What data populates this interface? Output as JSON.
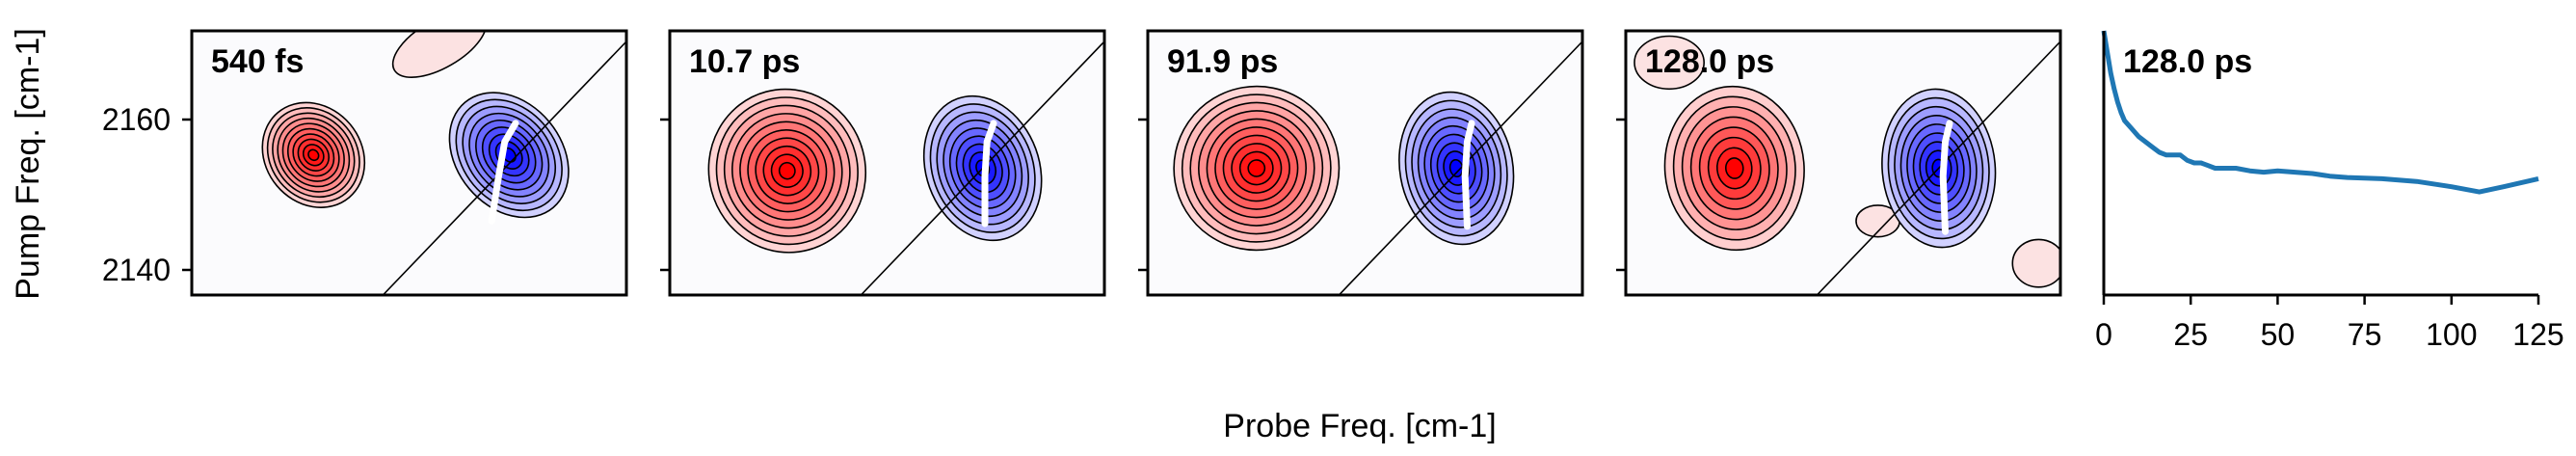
{
  "figure": {
    "xlabel": "Probe Freq. [cm-1]",
    "ylabel": "Pump Freq. [cm-1]"
  },
  "chart_data": [
    {
      "type": "heatmap",
      "title": "540 fs",
      "ylim": [
        2136,
        2171
      ],
      "yticks": [
        2140,
        2160
      ],
      "yticklabels": [
        "2140",
        "2160"
      ],
      "colormap": "bwr",
      "diagonal_line": true,
      "contours": {
        "negative": {
          "cx": 0.28,
          "cy": 0.47,
          "sx": 0.11,
          "sy": 0.21,
          "angle": -40,
          "levels": 10
        },
        "positive": {
          "cx": 0.73,
          "cy": 0.47,
          "sx": 0.12,
          "sy": 0.26,
          "angle": -40,
          "levels": 9
        },
        "extra": [
          {
            "cx": 0.57,
            "cy": 0.05,
            "sx": 0.12,
            "sy": 0.09,
            "angle": -30,
            "levels": 1,
            "sign": -1
          }
        ]
      },
      "center_line": [
        [
          0.69,
          0.72
        ],
        [
          0.705,
          0.56
        ],
        [
          0.72,
          0.42
        ],
        [
          0.745,
          0.35
        ]
      ]
    },
    {
      "type": "heatmap",
      "title": "10.7 ps",
      "ylim": [
        2136,
        2171
      ],
      "colormap": "bwr",
      "diagonal_line": true,
      "contours": {
        "negative": {
          "cx": 0.27,
          "cy": 0.53,
          "sx": 0.18,
          "sy": 0.31,
          "angle": -15,
          "levels": 10
        },
        "positive": {
          "cx": 0.72,
          "cy": 0.52,
          "sx": 0.13,
          "sy": 0.28,
          "angle": -20,
          "levels": 9
        },
        "extra": []
      },
      "center_line": [
        [
          0.725,
          0.73
        ],
        [
          0.725,
          0.55
        ],
        [
          0.73,
          0.42
        ],
        [
          0.745,
          0.35
        ]
      ]
    },
    {
      "type": "heatmap",
      "title": "91.9 ps",
      "ylim": [
        2136,
        2171
      ],
      "colormap": "bwr",
      "diagonal_line": true,
      "contours": {
        "negative": {
          "cx": 0.25,
          "cy": 0.52,
          "sx": 0.19,
          "sy": 0.31,
          "angle": -10,
          "levels": 10
        },
        "positive": {
          "cx": 0.71,
          "cy": 0.52,
          "sx": 0.13,
          "sy": 0.29,
          "angle": -10,
          "levels": 9
        },
        "extra": []
      },
      "center_line": [
        [
          0.735,
          0.74
        ],
        [
          0.73,
          0.55
        ],
        [
          0.735,
          0.42
        ],
        [
          0.745,
          0.35
        ]
      ]
    },
    {
      "type": "heatmap",
      "title": "128.0 ps",
      "ylim": [
        2136,
        2171
      ],
      "colormap": "bwr",
      "diagonal_line": true,
      "contours": {
        "negative": {
          "cx": 0.25,
          "cy": 0.52,
          "sx": 0.16,
          "sy": 0.31,
          "angle": -5,
          "levels": 8
        },
        "positive": {
          "cx": 0.72,
          "cy": 0.52,
          "sx": 0.13,
          "sy": 0.3,
          "angle": -5,
          "levels": 9
        },
        "extra": [
          {
            "cx": 0.58,
            "cy": 0.72,
            "sx": 0.05,
            "sy": 0.06,
            "angle": 0,
            "levels": 1,
            "sign": -1
          },
          {
            "cx": 0.95,
            "cy": 0.88,
            "sx": 0.06,
            "sy": 0.09,
            "angle": 0,
            "levels": 1,
            "sign": -1
          },
          {
            "cx": 0.1,
            "cy": 0.12,
            "sx": 0.08,
            "sy": 0.1,
            "angle": 0,
            "levels": 1,
            "sign": -1
          }
        ]
      },
      "center_line": [
        [
          0.735,
          0.76
        ],
        [
          0.73,
          0.55
        ],
        [
          0.735,
          0.42
        ],
        [
          0.745,
          0.35
        ]
      ]
    },
    {
      "type": "line",
      "title": "128.0 ps",
      "xlim": [
        0,
        125
      ],
      "xticks": [
        0,
        25,
        50,
        75,
        100,
        125
      ],
      "xticklabels": [
        "0",
        "25",
        "50",
        "75",
        "100",
        "125"
      ],
      "series": [
        {
          "color": "#1f77b4",
          "x": [
            0,
            1,
            2,
            3,
            4,
            5,
            6,
            8,
            10,
            12,
            14,
            16,
            18,
            20,
            22,
            24,
            26,
            28,
            30,
            32,
            35,
            38,
            42,
            46,
            50,
            55,
            60,
            65,
            70,
            80,
            90,
            100,
            108,
            115,
            125
          ],
          "y": [
            1.0,
            0.92,
            0.84,
            0.78,
            0.73,
            0.69,
            0.66,
            0.63,
            0.6,
            0.58,
            0.56,
            0.54,
            0.53,
            0.53,
            0.53,
            0.51,
            0.5,
            0.5,
            0.49,
            0.48,
            0.48,
            0.48,
            0.47,
            0.465,
            0.47,
            0.465,
            0.46,
            0.45,
            0.445,
            0.44,
            0.43,
            0.41,
            0.39,
            0.41,
            0.44
          ]
        }
      ]
    }
  ]
}
